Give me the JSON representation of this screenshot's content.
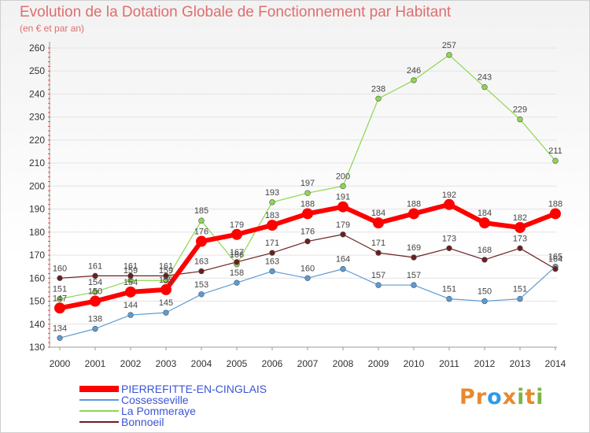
{
  "page": {
    "title": "Evolution de la Dotation Globale de Fonctionnement par Habitant",
    "subtitle": "(en € et par an)",
    "logo": [
      "P",
      "r",
      "o",
      "x",
      "i",
      "t",
      "i"
    ],
    "logo_colors": [
      "#e8892e",
      "#e8892e",
      "#2e9be8",
      "#e8892e",
      "#7ab648",
      "#e8892e",
      "#7ab648"
    ]
  },
  "chart_data": {
    "type": "line",
    "title": "Evolution de la Dotation Globale de Fonctionnement par Habitant",
    "subtitle": "(en € et par an)",
    "xlabel": "",
    "ylabel": "",
    "ylim": [
      130,
      260
    ],
    "y_ticks": [
      130,
      140,
      150,
      160,
      170,
      180,
      190,
      200,
      210,
      220,
      230,
      240,
      250,
      260
    ],
    "x": [
      "2000",
      "2001",
      "2002",
      "2003",
      "2004",
      "2005",
      "2006",
      "2007",
      "2008",
      "2009",
      "2010",
      "2011",
      "2012",
      "2013",
      "2014"
    ],
    "grid": true,
    "legend_position": "bottom-left",
    "series": [
      {
        "name": "PIERREFITTE-EN-CINGLAIS",
        "color": "#ff0000",
        "values": [
          147,
          150,
          154,
          155,
          176,
          179,
          183,
          188,
          191,
          184,
          188,
          192,
          184,
          182,
          188
        ]
      },
      {
        "name": "Cossesseville",
        "color": "#5b9bd5",
        "values": [
          134,
          138,
          144,
          145,
          153,
          158,
          163,
          160,
          164,
          157,
          157,
          151,
          150,
          151,
          165
        ]
      },
      {
        "name": "La Pommeraye",
        "color": "#8ed64f",
        "values": [
          151,
          154,
          159,
          159,
          185,
          166,
          193,
          197,
          200,
          238,
          246,
          257,
          243,
          229,
          211
        ]
      },
      {
        "name": "Bonnoeil",
        "color": "#6b1f1f",
        "values": [
          160,
          161,
          161,
          161,
          163,
          167,
          171,
          176,
          179,
          171,
          169,
          173,
          168,
          173,
          164
        ]
      }
    ]
  }
}
